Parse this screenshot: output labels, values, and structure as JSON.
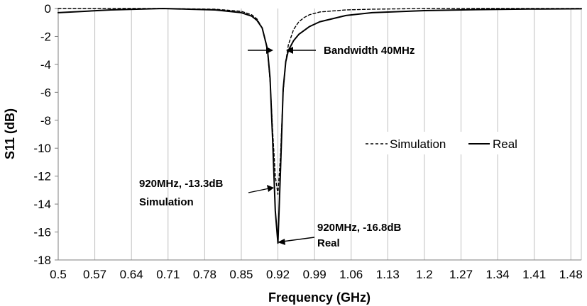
{
  "chart_data": {
    "type": "line",
    "xlabel": "Frequency (GHz)",
    "ylabel": "S11 (dB)",
    "xlim": [
      0.5,
      1.5
    ],
    "ylim": [
      -18,
      0
    ],
    "grid": "vertical",
    "legend_position": "right",
    "xticks": [
      "0.5",
      "0.57",
      "0.64",
      "0.71",
      "0.78",
      "0.85",
      "0.92",
      "0.99",
      "1.06",
      "1.13",
      "1.2",
      "1.27",
      "1.34",
      "1.41",
      "1.48"
    ],
    "xtick_values": [
      0.5,
      0.57,
      0.64,
      0.71,
      0.78,
      0.85,
      0.92,
      0.99,
      1.06,
      1.13,
      1.2,
      1.27,
      1.34,
      1.41,
      1.48
    ],
    "yticks": [
      "0",
      "-2",
      "-4",
      "-6",
      "-8",
      "-10",
      "-12",
      "-14",
      "-16",
      "-18"
    ],
    "ytick_values": [
      0,
      -2,
      -4,
      -6,
      -8,
      -10,
      -12,
      -14,
      -16,
      -18
    ],
    "series": [
      {
        "name": "Simulation",
        "style": "dashed",
        "color": "#000000",
        "x": [
          0.5,
          0.6,
          0.7,
          0.8,
          0.85,
          0.87,
          0.88,
          0.89,
          0.9,
          0.905,
          0.91,
          0.915,
          0.92,
          0.925,
          0.93,
          0.935,
          0.94,
          0.95,
          0.96,
          0.97,
          0.98,
          1.0,
          1.05,
          1.1,
          1.2,
          1.3,
          1.4,
          1.5
        ],
        "values": [
          0.0,
          0.0,
          0.0,
          -0.05,
          -0.2,
          -0.45,
          -0.75,
          -1.4,
          -3.0,
          -5.2,
          -8.8,
          -12.0,
          -13.3,
          -10.5,
          -6.0,
          -3.8,
          -2.6,
          -1.5,
          -0.95,
          -0.65,
          -0.45,
          -0.25,
          -0.1,
          -0.05,
          0.0,
          0.0,
          0.0,
          0.0
        ]
      },
      {
        "name": "Real",
        "style": "solid",
        "color": "#000000",
        "x": [
          0.5,
          0.55,
          0.6,
          0.65,
          0.7,
          0.75,
          0.8,
          0.85,
          0.87,
          0.88,
          0.89,
          0.9,
          0.905,
          0.91,
          0.915,
          0.92,
          0.925,
          0.93,
          0.935,
          0.94,
          0.95,
          0.96,
          0.98,
          1.0,
          1.05,
          1.1,
          1.2,
          1.3,
          1.4,
          1.5
        ],
        "values": [
          -0.3,
          -0.2,
          -0.1,
          -0.05,
          0.0,
          -0.05,
          -0.1,
          -0.3,
          -0.55,
          -0.85,
          -1.4,
          -2.9,
          -5.0,
          -9.5,
          -14.5,
          -16.8,
          -11.5,
          -5.8,
          -3.8,
          -3.0,
          -2.3,
          -1.85,
          -1.3,
          -0.95,
          -0.5,
          -0.3,
          -0.15,
          -0.08,
          -0.04,
          -0.02
        ]
      }
    ],
    "annotations": [
      {
        "text": "Bandwidth 40MHz"
      },
      {
        "text": "920MHz, -13.3dB"
      },
      {
        "text": "Simulation"
      },
      {
        "text": "920MHz, -16.8dB"
      },
      {
        "text": "Real"
      }
    ]
  }
}
